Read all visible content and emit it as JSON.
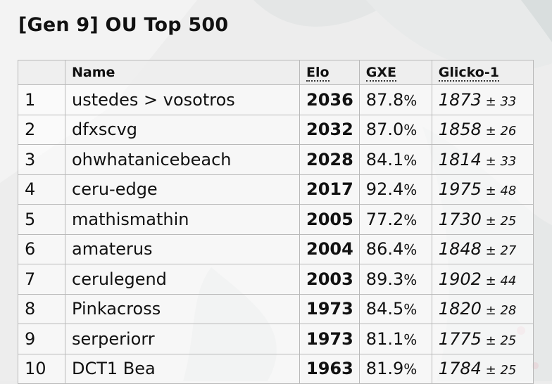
{
  "title": "[Gen 9] OU Top 500",
  "columns": {
    "rank": "",
    "name": "Name",
    "elo": "Elo",
    "gxe": "GXE",
    "glicko": "Glicko-1"
  },
  "rows": [
    {
      "rank": "1",
      "name": "ustedes > vosotros",
      "elo": "2036",
      "gxe": "87.8",
      "gxe_unit": "%",
      "glicko": "1873",
      "pm": "±",
      "dev": "33"
    },
    {
      "rank": "2",
      "name": "dfxscvg",
      "elo": "2032",
      "gxe": "87.0",
      "gxe_unit": "%",
      "glicko": "1858",
      "pm": "±",
      "dev": "26"
    },
    {
      "rank": "3",
      "name": "ohwhatanicebeach",
      "elo": "2028",
      "gxe": "84.1",
      "gxe_unit": "%",
      "glicko": "1814",
      "pm": "±",
      "dev": "33"
    },
    {
      "rank": "4",
      "name": "ceru-edge",
      "elo": "2017",
      "gxe": "92.4",
      "gxe_unit": "%",
      "glicko": "1975",
      "pm": "±",
      "dev": "48"
    },
    {
      "rank": "5",
      "name": "mathismathin",
      "elo": "2005",
      "gxe": "77.2",
      "gxe_unit": "%",
      "glicko": "1730",
      "pm": "±",
      "dev": "25"
    },
    {
      "rank": "6",
      "name": "amaterus",
      "elo": "2004",
      "gxe": "86.4",
      "gxe_unit": "%",
      "glicko": "1848",
      "pm": "±",
      "dev": "27"
    },
    {
      "rank": "7",
      "name": "cerulegend",
      "elo": "2003",
      "gxe": "89.3",
      "gxe_unit": "%",
      "glicko": "1902",
      "pm": "±",
      "dev": "44"
    },
    {
      "rank": "8",
      "name": "Pinkacross",
      "elo": "1973",
      "gxe": "84.5",
      "gxe_unit": "%",
      "glicko": "1820",
      "pm": "±",
      "dev": "28"
    },
    {
      "rank": "9",
      "name": "serperiorr",
      "elo": "1973",
      "gxe": "81.1",
      "gxe_unit": "%",
      "glicko": "1775",
      "pm": "±",
      "dev": "25"
    },
    {
      "rank": "10",
      "name": "DCT1 Bea",
      "elo": "1963",
      "gxe": "81.9",
      "gxe_unit": "%",
      "glicko": "1784",
      "pm": "±",
      "dev": "25"
    }
  ],
  "colors": {
    "background": "#ececec",
    "border": "#b9b9b9",
    "text": "#111111"
  }
}
